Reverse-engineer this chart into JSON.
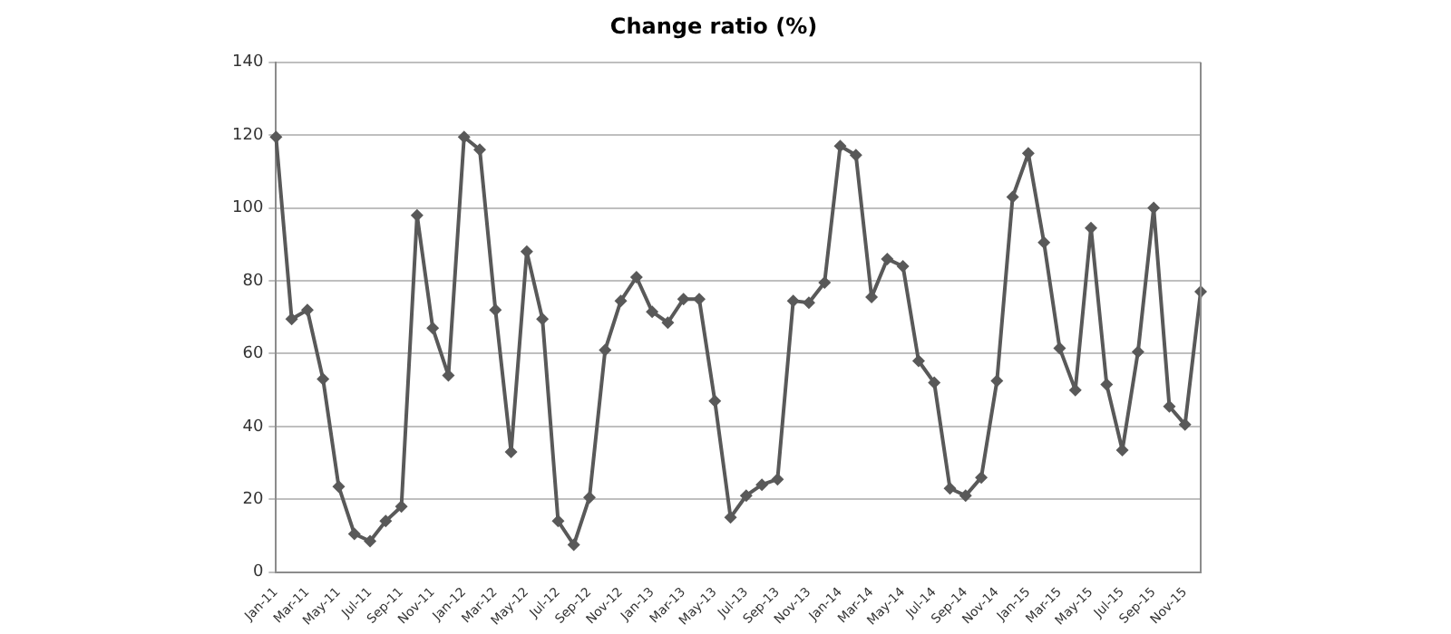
{
  "chart_data": {
    "type": "line",
    "title": "Change ratio (%)",
    "categories": [
      "Jan-11",
      null,
      "Mar-11",
      null,
      "May-11",
      null,
      "Jul-11",
      null,
      "Sep-11",
      null,
      "Nov-11",
      null,
      "Jan-12",
      null,
      "Mar-12",
      null,
      "May-12",
      null,
      "Jul-12",
      null,
      "Sep-12",
      null,
      "Nov-12",
      null,
      "Jan-13",
      null,
      "Mar-13",
      null,
      "May-13",
      null,
      "Jul-13",
      null,
      "Sep-13",
      null,
      "Nov-13",
      null,
      "Jan-14",
      null,
      "Mar-14",
      null,
      "May-14",
      null,
      "Jul-14",
      null,
      "Sep-14",
      null,
      "Nov-14",
      null,
      "Jan-15",
      null,
      "Mar-15",
      null,
      "May-15",
      null,
      "Jul-15",
      null,
      "Sep-15",
      null,
      "Nov-15",
      null
    ],
    "series": [
      {
        "color": "#595959",
        "values": [
          119.5,
          69.5,
          72,
          53,
          23.5,
          10.5,
          8.5,
          14,
          18,
          98,
          67,
          54,
          119.5,
          116,
          72,
          33,
          88,
          69.5,
          14,
          7.5,
          20.5,
          61,
          74.5,
          81,
          71.5,
          68.5,
          75,
          75,
          47,
          15,
          21,
          24,
          25.5,
          74.5,
          74,
          79.5,
          117,
          114.5,
          75.5,
          86,
          84,
          58,
          52,
          23,
          21,
          26,
          52.5,
          103,
          115,
          90.5,
          61.5,
          50,
          94.5,
          51.5,
          33.5,
          60.5,
          100,
          45.5,
          40.5,
          77
        ]
      }
    ],
    "ylim": [
      0,
      140
    ],
    "yticks": [
      0,
      20,
      40,
      60,
      80,
      100,
      120,
      140
    ],
    "grid": "y",
    "legend": false,
    "marker": "diamond",
    "line_style": "solid"
  }
}
